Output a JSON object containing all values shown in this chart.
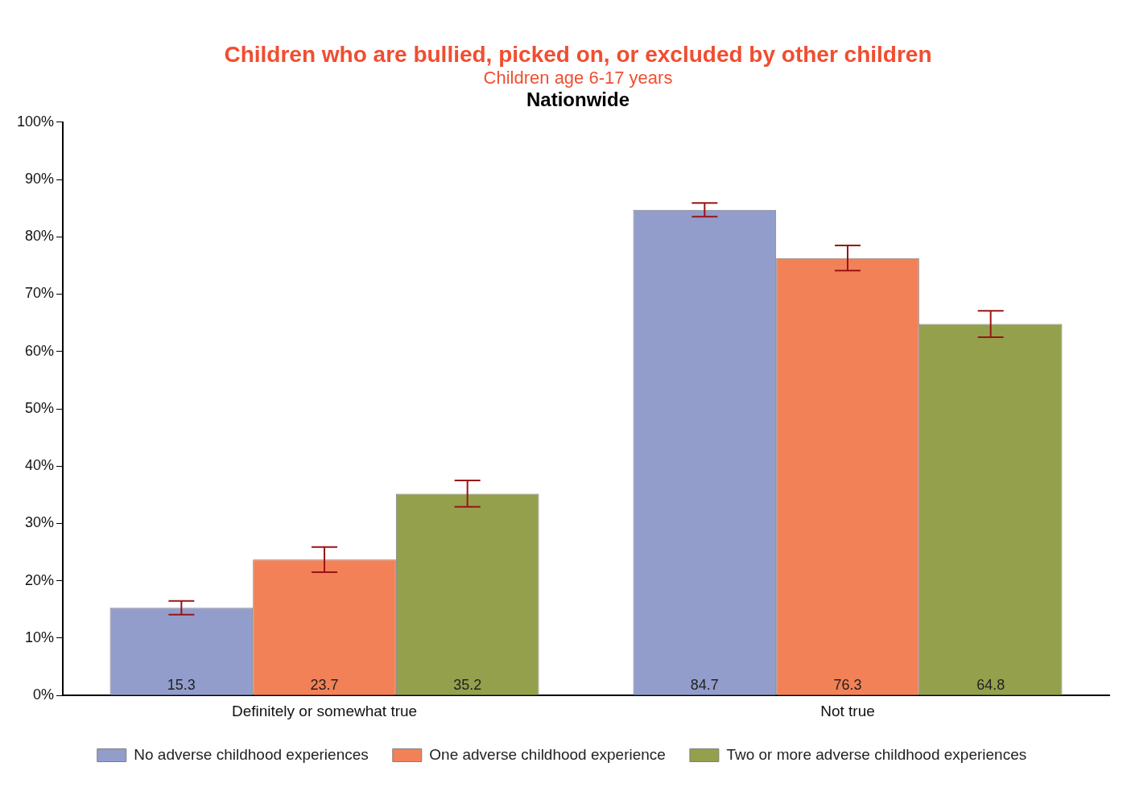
{
  "chart_data": {
    "type": "bar",
    "title": "Children who are bullied, picked on, or excluded by other children",
    "subtitle": "Children age 6-17 years",
    "annotations": [
      "Nationwide"
    ],
    "categories": [
      "Definitely or somewhat true",
      "Not true"
    ],
    "series": [
      {
        "name": "No adverse childhood experiences",
        "color": "#929dcc",
        "values": [
          15.3,
          84.7
        ],
        "errors": [
          1.2,
          1.2
        ]
      },
      {
        "name": "One adverse childhood experience",
        "color": "#f28157",
        "values": [
          23.7,
          76.3
        ],
        "errors": [
          2.2,
          2.2
        ]
      },
      {
        "name": "Two or more adverse childhood experiences",
        "color": "#95a04c",
        "values": [
          35.2,
          64.8
        ],
        "errors": [
          2.3,
          2.3
        ]
      }
    ],
    "ylim": [
      0,
      100
    ],
    "yticks": [
      {
        "value": 0,
        "label": "0%"
      },
      {
        "value": 10,
        "label": "10%"
      },
      {
        "value": 20,
        "label": "20%"
      },
      {
        "value": 30,
        "label": "30%"
      },
      {
        "value": 40,
        "label": "40%"
      },
      {
        "value": 50,
        "label": "50%"
      },
      {
        "value": 60,
        "label": "60%"
      },
      {
        "value": 70,
        "label": "70%"
      },
      {
        "value": 80,
        "label": "80%"
      },
      {
        "value": 90,
        "label": "90%"
      },
      {
        "value": 100,
        "label": "100%"
      }
    ],
    "grid": false,
    "legend": "bottom",
    "data_labels": true
  }
}
